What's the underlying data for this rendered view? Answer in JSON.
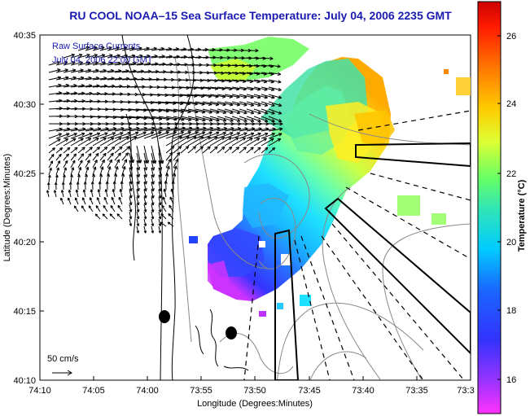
{
  "title": "RU COOL  NOAA–15  Sea Surface Temperature:  July 04, 2006 2235 GMT",
  "legend": {
    "line1": "Raw Surface Currents",
    "line2": "July 04, 2006 22:00 GMT",
    "scale_label": "50 cm/s"
  },
  "axes": {
    "xlabel": "Longitude (Degrees:Minutes)",
    "ylabel": "Latitude (Degrees:Minutes)",
    "xticks": [
      "74:10",
      "74:05",
      "74:00",
      "73:55",
      "73:50",
      "73:45",
      "73:40",
      "73:35",
      "73:3"
    ],
    "yticks": [
      "40:35",
      "40:30",
      "40:25",
      "40:20",
      "40:15",
      "40:10"
    ]
  },
  "colorbar": {
    "label": "Temperature (°C)",
    "ticks": [
      "26",
      "24",
      "22",
      "20",
      "18",
      "16"
    ],
    "range": [
      15,
      27.3
    ]
  },
  "colors": {
    "title": "#1a1ab0",
    "land_contour": "#000000",
    "bathymetry": "#888888"
  }
}
